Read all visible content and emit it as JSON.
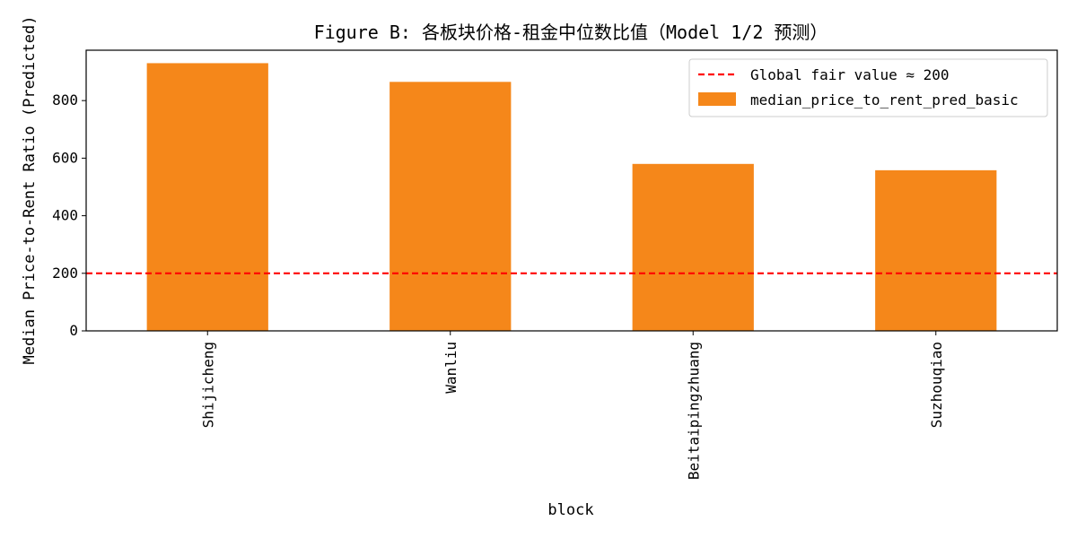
{
  "chart_data": {
    "type": "bar",
    "title": "Figure B: 各板块价格-租金中位数比值（Model 1/2 预测）",
    "xlabel": "block",
    "ylabel": "Median Price-to-Rent Ratio (Predicted)",
    "categories": [
      "Shijicheng",
      "Wanliu",
      "Beitaipingzhuang",
      "Suzhouqiao"
    ],
    "series": [
      {
        "name": "median_price_to_rent_pred_basic",
        "values": [
          930,
          865,
          580,
          558
        ],
        "color": "#f5871a"
      }
    ],
    "reference_line": {
      "label": "Global fair value ≈ 200",
      "value": 200,
      "color": "#ff0000",
      "style": "dashed"
    },
    "ylim": [
      0,
      975
    ],
    "yticks": [
      0,
      200,
      400,
      600,
      800
    ],
    "grid": false,
    "legend_position": "top-right"
  }
}
